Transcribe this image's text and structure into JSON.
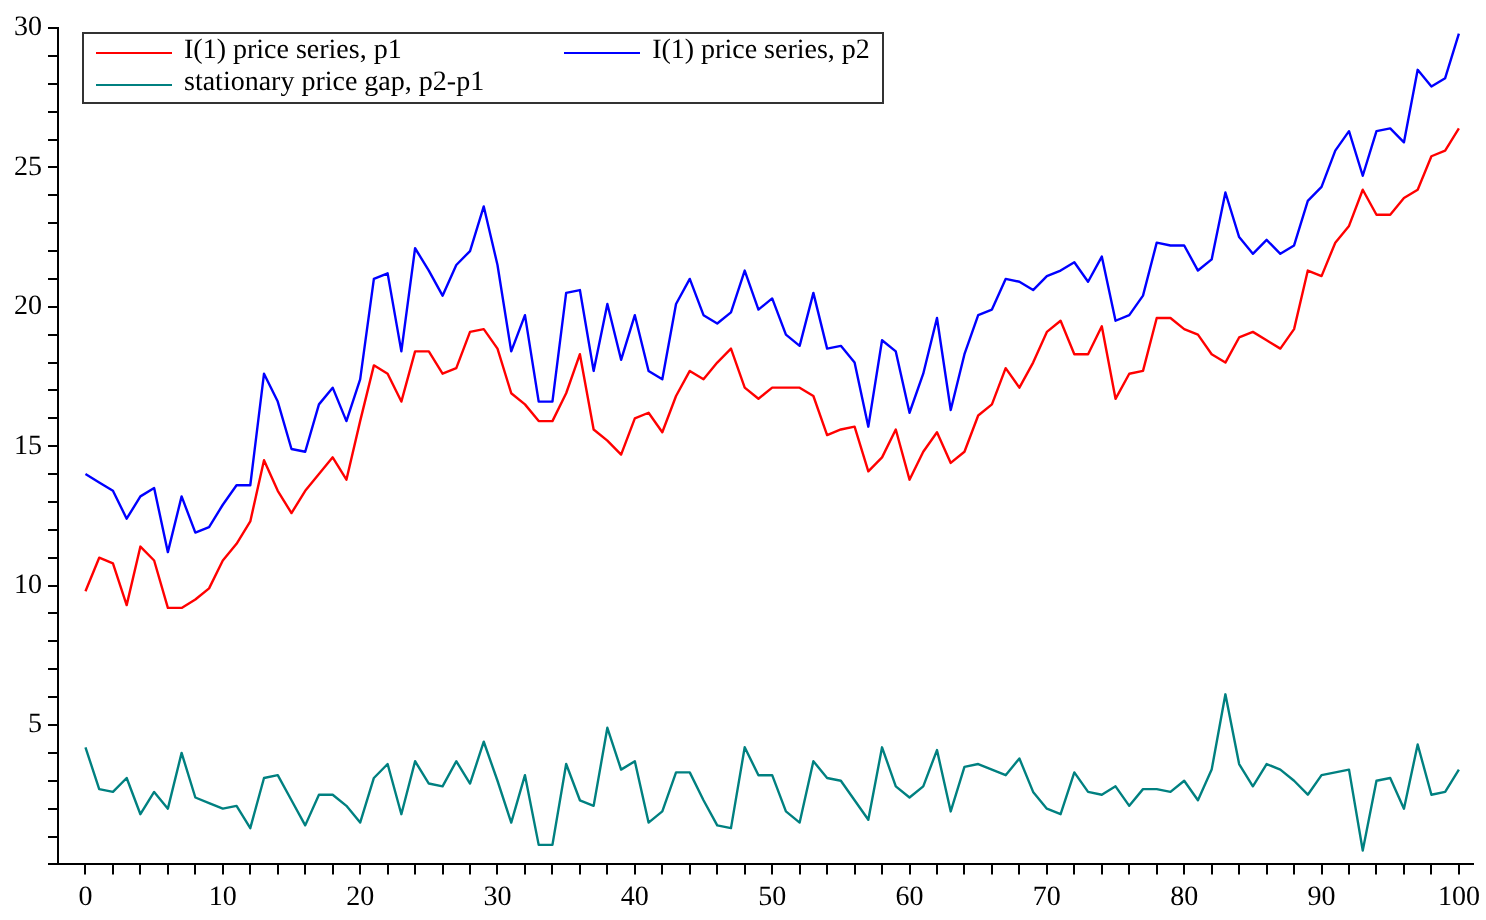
{
  "chart_data": {
    "type": "line",
    "x": [
      0,
      1,
      2,
      3,
      4,
      5,
      6,
      7,
      8,
      9,
      10,
      11,
      12,
      13,
      14,
      15,
      16,
      17,
      18,
      19,
      20,
      21,
      22,
      23,
      24,
      25,
      26,
      27,
      28,
      29,
      30,
      31,
      32,
      33,
      34,
      35,
      36,
      37,
      38,
      39,
      40,
      41,
      42,
      43,
      44,
      45,
      46,
      47,
      48,
      49,
      50,
      51,
      52,
      53,
      54,
      55,
      56,
      57,
      58,
      59,
      60,
      61,
      62,
      63,
      64,
      65,
      66,
      67,
      68,
      69,
      70,
      71,
      72,
      73,
      74,
      75,
      76,
      77,
      78,
      79,
      80,
      81,
      82,
      83,
      84,
      85,
      86,
      87,
      88,
      89,
      90,
      91,
      92,
      93,
      94,
      95,
      96,
      97,
      98,
      99,
      100
    ],
    "series": [
      {
        "name": "I(1) price series, p1",
        "color": "#ff0000",
        "values": [
          9.8,
          11.0,
          10.8,
          9.3,
          11.4,
          10.9,
          9.2,
          9.2,
          9.5,
          9.9,
          10.9,
          11.5,
          12.3,
          14.5,
          13.4,
          12.6,
          13.4,
          14.0,
          14.6,
          13.8,
          15.9,
          17.9,
          17.6,
          16.6,
          18.4,
          18.4,
          17.6,
          17.8,
          19.1,
          19.2,
          18.5,
          16.9,
          16.5,
          15.9,
          15.9,
          16.9,
          18.3,
          15.6,
          15.2,
          14.7,
          16.0,
          16.2,
          15.5,
          16.8,
          17.7,
          17.4,
          18.0,
          18.5,
          17.1,
          16.7,
          17.1,
          17.1,
          17.1,
          16.8,
          15.4,
          15.6,
          15.7,
          14.1,
          14.6,
          15.6,
          13.8,
          14.8,
          15.5,
          14.4,
          14.8,
          16.1,
          16.5,
          17.8,
          17.1,
          18.0,
          19.1,
          19.5,
          18.3,
          18.3,
          19.3,
          16.7,
          17.6,
          17.7,
          19.6,
          19.6,
          19.2,
          19.0,
          18.3,
          18.0,
          18.9,
          19.1,
          18.8,
          18.5,
          19.2,
          21.3,
          21.1,
          22.3,
          22.9,
          24.2,
          23.3,
          23.3,
          23.9,
          24.2,
          25.4,
          25.6,
          26.4
        ]
      },
      {
        "name": "I(1) price series, p2",
        "color": "#0000ff",
        "values": [
          14.0,
          13.7,
          13.4,
          12.4,
          13.2,
          13.5,
          11.2,
          13.2,
          11.9,
          12.1,
          12.9,
          13.6,
          13.6,
          17.6,
          16.6,
          14.9,
          14.8,
          16.5,
          17.1,
          15.9,
          17.4,
          21.0,
          21.2,
          18.4,
          22.1,
          21.3,
          20.4,
          21.5,
          22.0,
          23.6,
          21.5,
          18.4,
          19.7,
          16.6,
          16.6,
          20.5,
          20.6,
          17.7,
          20.1,
          18.1,
          19.7,
          17.7,
          17.4,
          20.1,
          21.0,
          19.7,
          19.4,
          19.8,
          21.3,
          19.9,
          20.3,
          19.0,
          18.6,
          20.5,
          18.5,
          18.6,
          18.0,
          15.7,
          18.8,
          18.4,
          16.2,
          17.6,
          19.6,
          16.3,
          18.3,
          19.7,
          19.9,
          21.0,
          20.9,
          20.6,
          21.1,
          21.3,
          21.6,
          20.9,
          21.8,
          19.5,
          19.7,
          20.4,
          22.3,
          22.2,
          22.2,
          21.3,
          21.7,
          24.1,
          22.5,
          21.9,
          22.4,
          21.9,
          22.2,
          23.8,
          24.3,
          25.6,
          26.3,
          24.7,
          26.3,
          26.4,
          25.9,
          28.5,
          27.9,
          28.2,
          29.8
        ]
      },
      {
        "name": "stationary price gap, p2-p1",
        "color": "#008080",
        "values": [
          4.2,
          2.7,
          2.6,
          3.1,
          1.8,
          2.6,
          2.0,
          4.0,
          2.4,
          2.2,
          2.0,
          2.1,
          1.3,
          3.1,
          3.2,
          2.3,
          1.4,
          2.5,
          2.5,
          2.1,
          1.5,
          3.1,
          3.6,
          1.8,
          3.7,
          2.9,
          2.8,
          3.7,
          2.9,
          4.4,
          3.0,
          1.5,
          3.2,
          0.7,
          0.7,
          3.6,
          2.3,
          2.1,
          4.9,
          3.4,
          3.7,
          1.5,
          1.9,
          3.3,
          3.3,
          2.3,
          1.4,
          1.3,
          4.2,
          3.2,
          3.2,
          1.9,
          1.5,
          3.7,
          3.1,
          3.0,
          2.3,
          1.6,
          4.2,
          2.8,
          2.4,
          2.8,
          4.1,
          1.9,
          3.5,
          3.6,
          3.4,
          3.2,
          3.8,
          2.6,
          2.0,
          1.8,
          3.3,
          2.6,
          2.5,
          2.8,
          2.1,
          2.7,
          2.7,
          2.6,
          3.0,
          2.3,
          3.4,
          6.1,
          3.6,
          2.8,
          3.6,
          3.4,
          3.0,
          2.5,
          3.2,
          3.3,
          3.4,
          0.5,
          3.0,
          3.1,
          2.0,
          4.3,
          2.5,
          2.6,
          3.4
        ]
      }
    ],
    "xlim": [
      -2,
      101
    ],
    "xticks": [
      0,
      {
        "value": 2,
        "label": null
      },
      {
        "value": 4,
        "label": null
      },
      {
        "value": 6,
        "label": null
      },
      {
        "value": 8,
        "label": null
      },
      10,
      {
        "value": 12,
        "label": null
      },
      {
        "value": 14,
        "label": null
      },
      {
        "value": 16,
        "label": null
      },
      {
        "value": 18,
        "label": null
      },
      20,
      {
        "value": 22,
        "label": null
      },
      {
        "value": 24,
        "label": null
      },
      {
        "value": 26,
        "label": null
      },
      {
        "value": 28,
        "label": null
      },
      30,
      {
        "value": 32,
        "label": null
      },
      {
        "value": 34,
        "label": null
      },
      {
        "value": 36,
        "label": null
      },
      {
        "value": 38,
        "label": null
      },
      40,
      {
        "value": 42,
        "label": null
      },
      {
        "value": 44,
        "label": null
      },
      {
        "value": 46,
        "label": null
      },
      {
        "value": 48,
        "label": null
      },
      50,
      {
        "value": 52,
        "label": null
      },
      {
        "value": 54,
        "label": null
      },
      {
        "value": 56,
        "label": null
      },
      {
        "value": 58,
        "label": null
      },
      60,
      {
        "value": 62,
        "label": null
      },
      {
        "value": 64,
        "label": null
      },
      {
        "value": 66,
        "label": null
      },
      {
        "value": 68,
        "label": null
      },
      70,
      {
        "value": 72,
        "label": null
      },
      {
        "value": 74,
        "label": null
      },
      {
        "value": 76,
        "label": null
      },
      {
        "value": 78,
        "label": null
      },
      80,
      {
        "value": 82,
        "label": null
      },
      {
        "value": 84,
        "label": null
      },
      {
        "value": 86,
        "label": null
      },
      {
        "value": 88,
        "label": null
      },
      90,
      {
        "value": 92,
        "label": null
      },
      {
        "value": 94,
        "label": null
      },
      {
        "value": 96,
        "label": null
      },
      {
        "value": 98,
        "label": null
      },
      100
    ],
    "ylim": [
      0,
      30
    ],
    "yticks": [
      {
        "value": 0,
        "label": null
      },
      {
        "value": 1,
        "label": null
      },
      {
        "value": 2,
        "label": null
      },
      {
        "value": 3,
        "label": null
      },
      {
        "value": 4,
        "label": null
      },
      5,
      {
        "value": 6,
        "label": null
      },
      {
        "value": 7,
        "label": null
      },
      {
        "value": 8,
        "label": null
      },
      {
        "value": 9,
        "label": null
      },
      10,
      {
        "value": 11,
        "label": null
      },
      {
        "value": 12,
        "label": null
      },
      {
        "value": 13,
        "label": null
      },
      {
        "value": 14,
        "label": null
      },
      15,
      {
        "value": 16,
        "label": null
      },
      {
        "value": 17,
        "label": null
      },
      {
        "value": 18,
        "label": null
      },
      {
        "value": 19,
        "label": null
      },
      20,
      {
        "value": 21,
        "label": null
      },
      {
        "value": 22,
        "label": null
      },
      {
        "value": 23,
        "label": null
      },
      {
        "value": 24,
        "label": null
      },
      25,
      {
        "value": 26,
        "label": null
      },
      {
        "value": 27,
        "label": null
      },
      {
        "value": 28,
        "label": null
      },
      {
        "value": 29,
        "label": null
      },
      30
    ],
    "grid": false,
    "legend": "top left",
    "marker": "none",
    "line_style": "solid"
  }
}
